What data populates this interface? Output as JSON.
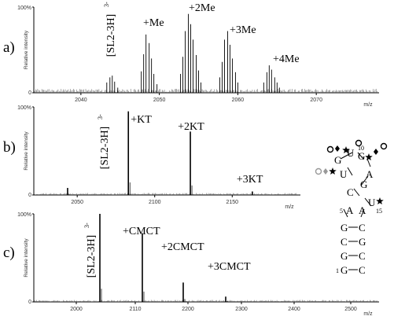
{
  "chart_data": [
    {
      "type": "line",
      "panel_label": "a)",
      "xlabel": "m/z",
      "ylabel": "Relative intensity",
      "y_ticks": [
        "100%",
        "0"
      ],
      "x_ticks": [
        2040,
        2050,
        2060,
        2070
      ],
      "xlim": [
        2034,
        2078
      ],
      "ylim": [
        0,
        100
      ],
      "peak_clusters": [
        {
          "x": [
            2043.3,
            2043.7,
            2044.0,
            2044.3,
            2044.7
          ],
          "values": [
            12,
            18,
            20,
            13,
            6
          ]
        },
        {
          "x": [
            2047.7,
            2048.0,
            2048.3,
            2048.7,
            2049.0,
            2049.3,
            2049.7
          ],
          "values": [
            25,
            45,
            68,
            58,
            40,
            22,
            10
          ]
        },
        {
          "x": [
            2052.7,
            2053.0,
            2053.3,
            2053.7,
            2054.0,
            2054.3,
            2054.7,
            2055.0,
            2055.3
          ],
          "values": [
            22,
            42,
            72,
            92,
            80,
            62,
            44,
            26,
            12
          ]
        },
        {
          "x": [
            2057.7,
            2058.0,
            2058.3,
            2058.7,
            2059.0,
            2059.3,
            2059.7,
            2060.0
          ],
          "values": [
            18,
            36,
            62,
            72,
            56,
            40,
            24,
            12
          ]
        },
        {
          "x": [
            2063.3,
            2063.7,
            2064.0,
            2064.3,
            2064.7,
            2065.0,
            2065.3
          ],
          "values": [
            12,
            24,
            32,
            27,
            18,
            12,
            6
          ]
        }
      ],
      "annotations": [
        {
          "text": "[SL2-3H]",
          "sup": "3-",
          "x": 2044.0,
          "rotated": true
        },
        {
          "text": "+Me",
          "x": 2049.0
        },
        {
          "text": "+2Me",
          "x": 2054.0
        },
        {
          "text": "+3Me",
          "x": 2059.0
        },
        {
          "text": "+4Me",
          "x": 2064.5
        }
      ]
    },
    {
      "type": "line",
      "panel_label": "b)",
      "xlabel": "m/z",
      "ylabel": "Relative intensity",
      "y_ticks": [
        "100%",
        "0"
      ],
      "x_ticks": [
        2050,
        2100,
        2150
      ],
      "xlim": [
        2022,
        2194
      ],
      "ylim": [
        0,
        100
      ],
      "peaks": {
        "x": [
          2043.8,
          2083.0,
          2123.0,
          2163.0
        ],
        "values": [
          8,
          95,
          72,
          4
        ]
      },
      "annotations": [
        {
          "text": "[SL2-3H]",
          "sup": "3-",
          "x": 2043.8,
          "rotated": true
        },
        {
          "text": "+KT",
          "x": 2083.0
        },
        {
          "text": "+2KT",
          "x": 2123.0
        },
        {
          "text": "+3KT",
          "x": 2163.0
        }
      ]
    },
    {
      "type": "line",
      "panel_label": "c)",
      "xlabel": "m/z",
      "ylabel": "Relative intensity",
      "y_ticks": [
        "100%",
        "0"
      ],
      "x_ticks": [
        2000,
        2110,
        2200,
        2300,
        2400,
        2500
      ],
      "xlim": [
        1910,
        2600
      ],
      "ylim": [
        0,
        100
      ],
      "peaks": {
        "x": [
          2043.8,
          2119.7,
          2206.5,
          2284.0
        ],
        "values": [
          100,
          78,
          22,
          6
        ]
      },
      "annotations": [
        {
          "text": "[SL2-3H]",
          "sup": "3-",
          "x": 2043.8,
          "rotated": true
        },
        {
          "text": "+CMCT",
          "x": 2119.7
        },
        {
          "text": "+2CMCT",
          "x": 2206.5
        },
        {
          "text": "+3CMCT",
          "x": 2284.0
        }
      ]
    }
  ],
  "rna_structure": {
    "bases": [
      "G",
      "U",
      "G",
      "U",
      "A",
      "C",
      "G",
      "U",
      "A",
      "A",
      "G",
      "C",
      "C",
      "G",
      "G",
      "C",
      "G",
      "C"
    ],
    "position_numbers": [
      "10",
      "5",
      "15",
      "1"
    ]
  }
}
